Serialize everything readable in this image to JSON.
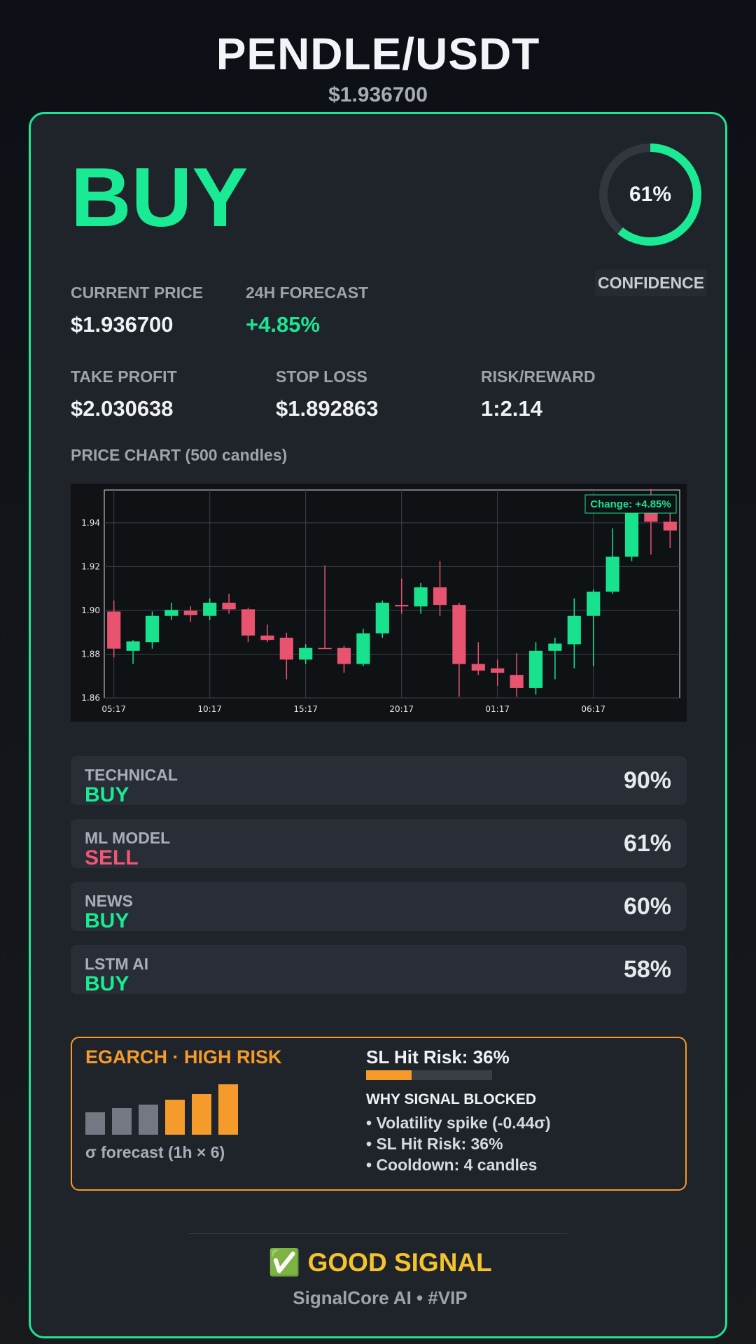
{
  "header": {
    "pair": "PENDLE/USDT",
    "price": "$1.936700"
  },
  "signal": {
    "label": "BUY",
    "color": "#19ea93"
  },
  "confidence": {
    "value": 0.61,
    "text": "61%",
    "label": "CONFIDENCE"
  },
  "metrics": {
    "current_price": {
      "label": "CURRENT PRICE",
      "value": "$1.936700"
    },
    "forecast": {
      "label": "24H FORECAST",
      "value": "+4.85%"
    },
    "take_profit": {
      "label": "TAKE PROFIT",
      "value": "$2.030638"
    },
    "stop_loss": {
      "label": "STOP LOSS",
      "value": "$1.892863"
    },
    "risk_reward": {
      "label": "RISK/REWARD",
      "value": "1:2.14"
    }
  },
  "chart_title": "PRICE CHART (500 candles)",
  "chart_data": {
    "type": "candlestick",
    "annotation": "Change: +4.85%",
    "ylim": [
      1.86,
      1.955
    ],
    "y_ticks": [
      "1.86",
      "1.88",
      "1.90",
      "1.92",
      "1.94"
    ],
    "x_ticks": [
      "05:17",
      "10:17",
      "15:17",
      "20:17",
      "01:17",
      "06:17"
    ],
    "up_color": "#19e28f",
    "down_color": "#e8546f",
    "candles": [
      {
        "o": 1.8995,
        "h": 1.9045,
        "l": 1.8785,
        "c": 1.8825
      },
      {
        "o": 1.8815,
        "h": 1.8865,
        "l": 1.8755,
        "c": 1.8858
      },
      {
        "o": 1.8855,
        "h": 1.8995,
        "l": 1.8825,
        "c": 1.8975
      },
      {
        "o": 1.8975,
        "h": 1.9035,
        "l": 1.8955,
        "c": 1.9002
      },
      {
        "o": 1.8998,
        "h": 1.9018,
        "l": 1.8948,
        "c": 1.8978
      },
      {
        "o": 1.8975,
        "h": 1.9055,
        "l": 1.8955,
        "c": 1.9035
      },
      {
        "o": 1.9035,
        "h": 1.9075,
        "l": 1.8985,
        "c": 1.9005
      },
      {
        "o": 1.9005,
        "h": 1.9012,
        "l": 1.8855,
        "c": 1.8885
      },
      {
        "o": 1.8885,
        "h": 1.8935,
        "l": 1.8855,
        "c": 1.8865
      },
      {
        "o": 1.8875,
        "h": 1.8898,
        "l": 1.8685,
        "c": 1.8775
      },
      {
        "o": 1.8775,
        "h": 1.8845,
        "l": 1.8755,
        "c": 1.8828
      },
      {
        "o": 1.8828,
        "h": 1.9205,
        "l": 1.8825,
        "c": 1.8825
      },
      {
        "o": 1.8828,
        "h": 1.8838,
        "l": 1.8715,
        "c": 1.8755
      },
      {
        "o": 1.8755,
        "h": 1.8915,
        "l": 1.8745,
        "c": 1.8895
      },
      {
        "o": 1.8895,
        "h": 1.9045,
        "l": 1.8875,
        "c": 1.9035
      },
      {
        "o": 1.9025,
        "h": 1.9145,
        "l": 1.8985,
        "c": 1.9018
      },
      {
        "o": 1.9018,
        "h": 1.9125,
        "l": 1.8985,
        "c": 1.9105
      },
      {
        "o": 1.9105,
        "h": 1.9225,
        "l": 1.8975,
        "c": 1.9025
      },
      {
        "o": 1.9025,
        "h": 1.9035,
        "l": 1.8605,
        "c": 1.8755
      },
      {
        "o": 1.8755,
        "h": 1.8855,
        "l": 1.8705,
        "c": 1.8725
      },
      {
        "o": 1.8735,
        "h": 1.8775,
        "l": 1.8655,
        "c": 1.8715
      },
      {
        "o": 1.8705,
        "h": 1.8805,
        "l": 1.8605,
        "c": 1.8645
      },
      {
        "o": 1.8645,
        "h": 1.8855,
        "l": 1.8615,
        "c": 1.8815
      },
      {
        "o": 1.8815,
        "h": 1.8875,
        "l": 1.8685,
        "c": 1.8848
      },
      {
        "o": 1.8845,
        "h": 1.9055,
        "l": 1.8735,
        "c": 1.8975
      },
      {
        "o": 1.8975,
        "h": 1.9095,
        "l": 1.8745,
        "c": 1.9085
      },
      {
        "o": 1.9085,
        "h": 1.9375,
        "l": 1.9075,
        "c": 1.9245
      },
      {
        "o": 1.9245,
        "h": 1.9525,
        "l": 1.9225,
        "c": 1.9445
      },
      {
        "o": 1.9445,
        "h": 1.9555,
        "l": 1.9255,
        "c": 1.9405
      },
      {
        "o": 1.9405,
        "h": 1.9445,
        "l": 1.9285,
        "c": 1.9365
      }
    ]
  },
  "indicators": [
    {
      "name": "TECHNICAL",
      "signal": "BUY",
      "signal_color": "#19ea93",
      "pct": "90%"
    },
    {
      "name": "ML MODEL",
      "signal": "SELL",
      "signal_color": "#ef5774",
      "pct": "61%"
    },
    {
      "name": "NEWS",
      "signal": "BUY",
      "signal_color": "#19ea93",
      "pct": "60%"
    },
    {
      "name": "LSTM AI",
      "signal": "BUY",
      "signal_color": "#19ea93",
      "pct": "58%"
    }
  ],
  "risk": {
    "title": "EGARCH · HIGH RISK",
    "accent": "#f59b2b",
    "sigma_bars": [
      0.45,
      0.53,
      0.6,
      0.7,
      0.8,
      1.0
    ],
    "sigma_label": "σ forecast (1h × 6)",
    "sl_hit_text": "SL Hit Risk: 36%",
    "sl_hit_value": 0.36,
    "why_title": "WHY SIGNAL BLOCKED",
    "reasons": [
      "• Volatility spike (-0.44σ)",
      "• SL Hit Risk: 36%",
      "• Cooldown: 4 candles"
    ]
  },
  "footer": {
    "good_signal": "✅ GOOD SIGNAL",
    "brand": "SignalCore AI • #VIP"
  }
}
